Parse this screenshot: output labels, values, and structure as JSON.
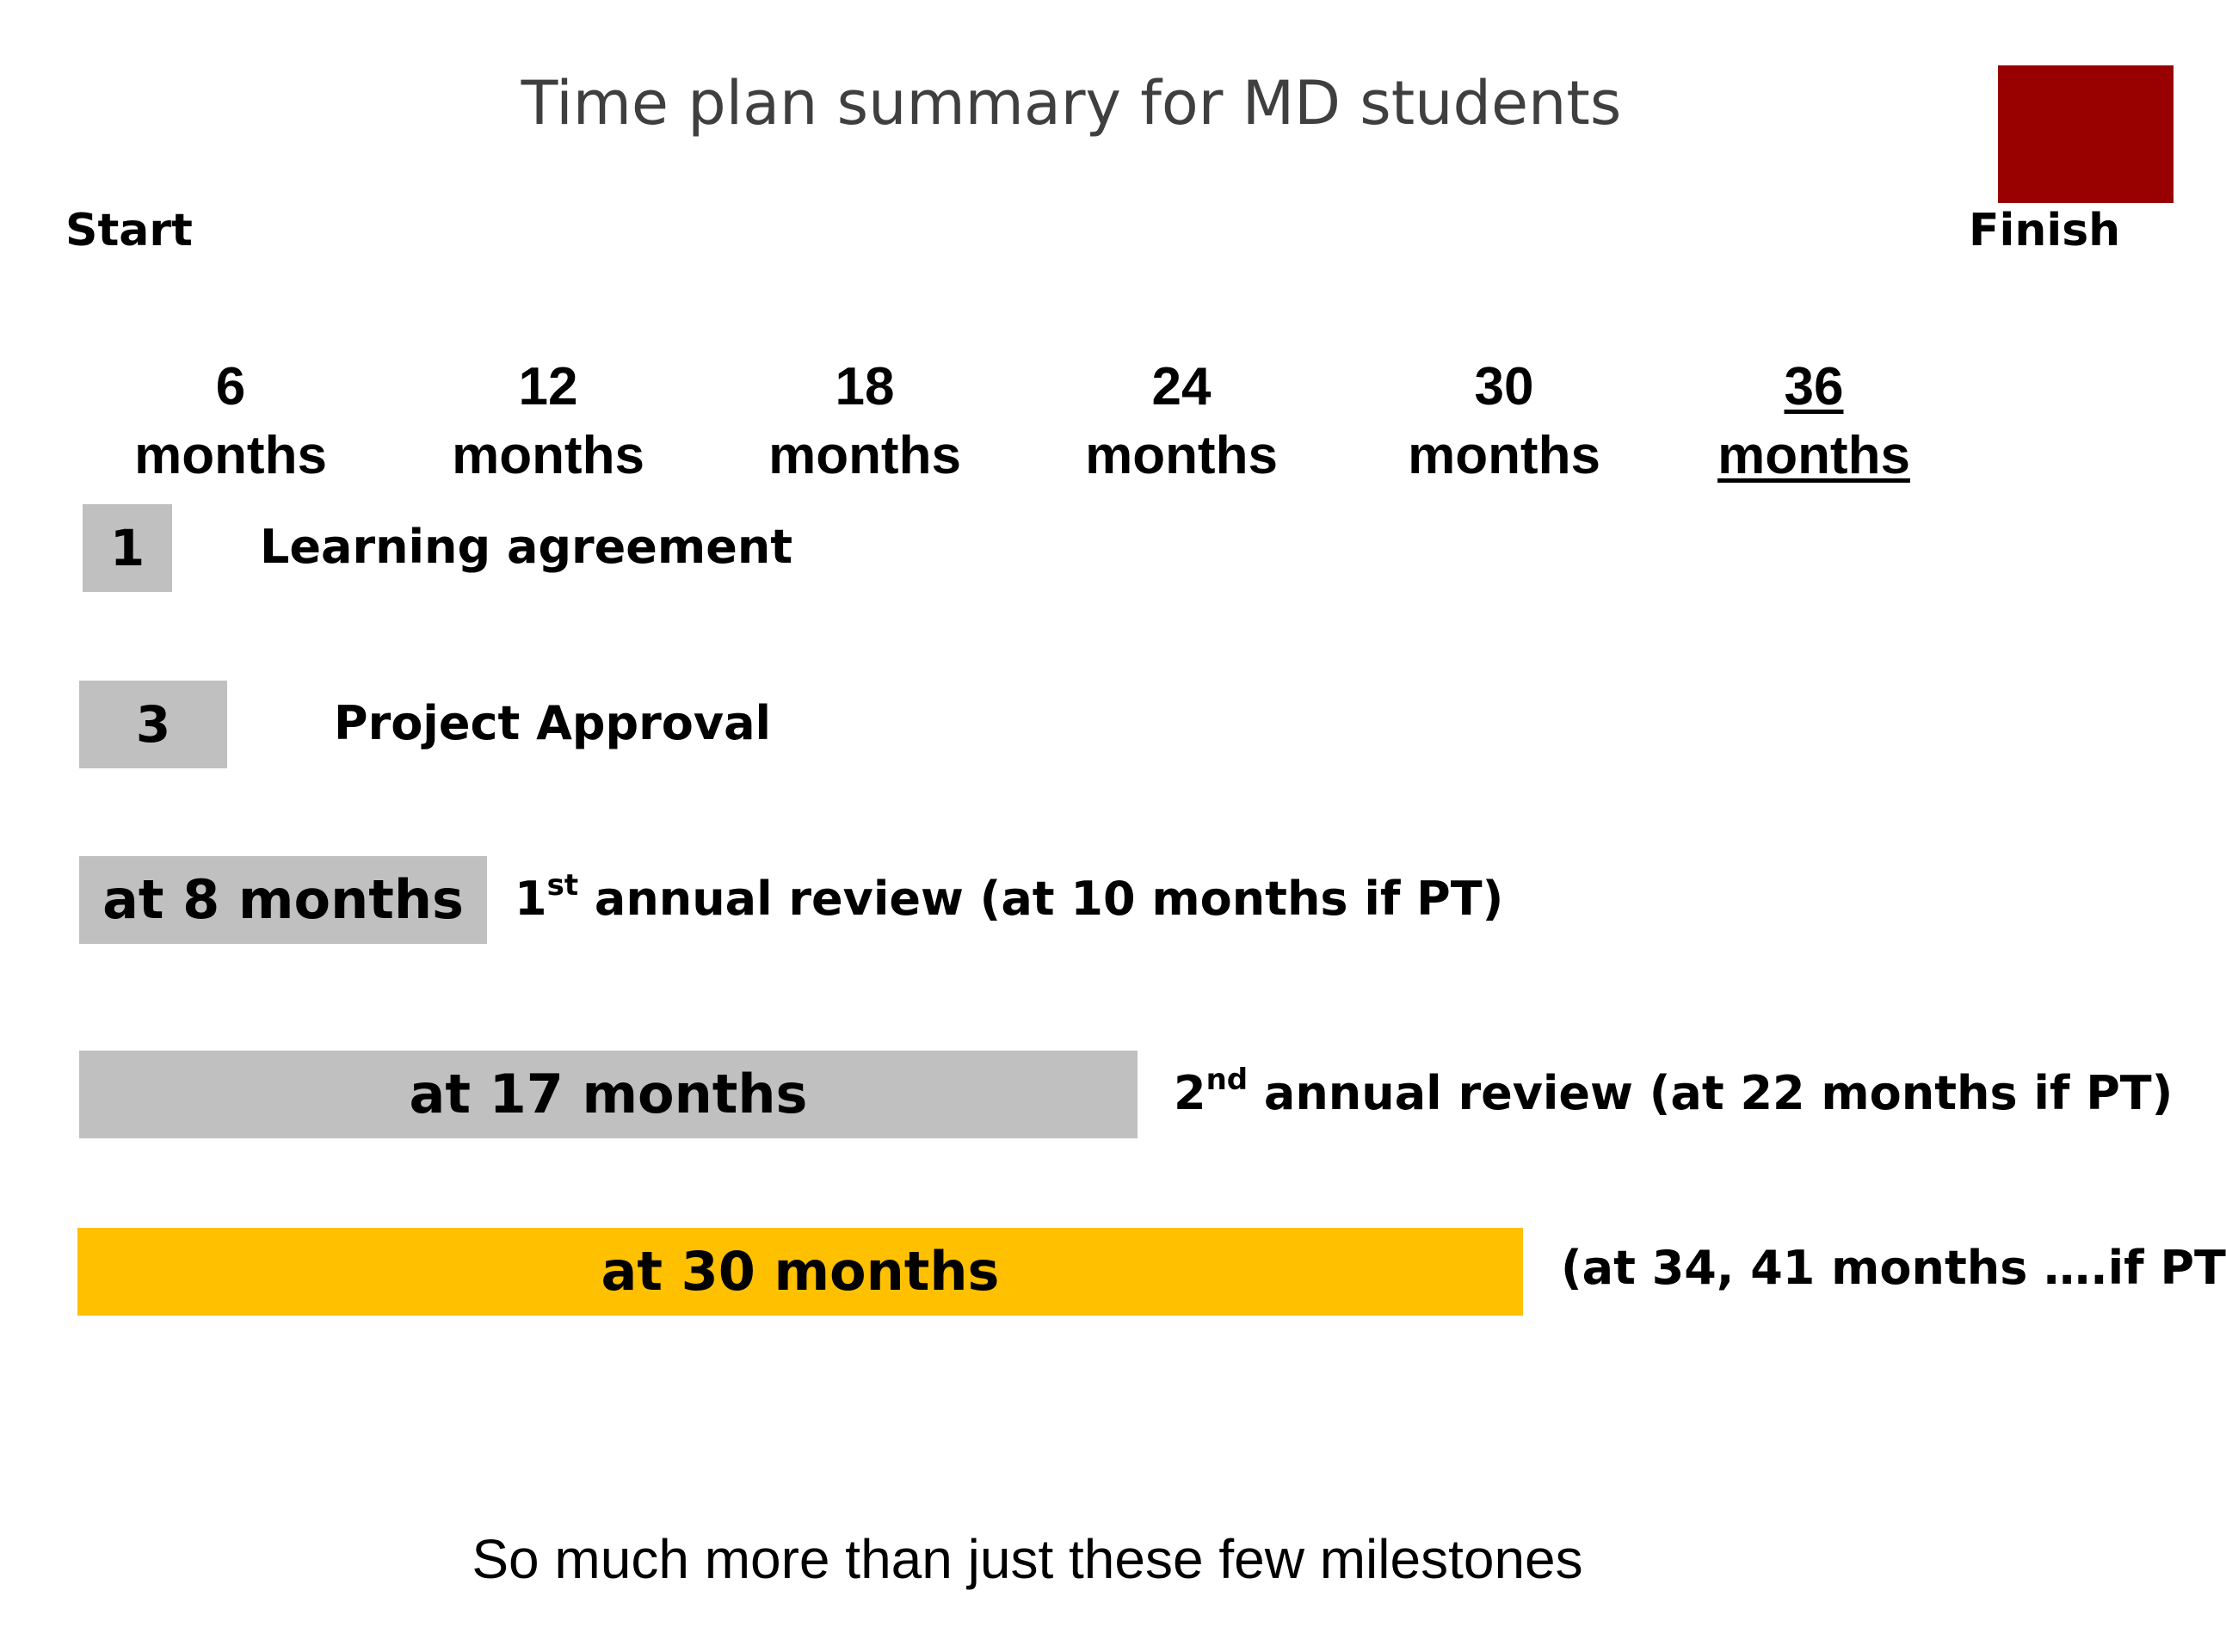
{
  "title": "Time plan summary for MD students",
  "start_label": "Start",
  "finish_label": "Finish",
  "colors": {
    "corner_block": "#990000",
    "gray_bar": "#c0c0c0",
    "highlight_bar": "#ffc000",
    "title_text": "#3f3f3f"
  },
  "timeline": {
    "total_months": 36,
    "ticks": [
      {
        "number": "6",
        "unit": "months"
      },
      {
        "number": "12",
        "unit": "months"
      },
      {
        "number": "18",
        "unit": "months"
      },
      {
        "number": "24",
        "unit": "months"
      },
      {
        "number": "30",
        "unit": "months"
      },
      {
        "number": "36",
        "unit": "months"
      }
    ]
  },
  "milestones": [
    {
      "bar_text": "1",
      "label": "Learning agreement"
    },
    {
      "bar_text": "3",
      "label": "Project Approval"
    },
    {
      "bar_text": "at 8 months",
      "label_prefix": "1",
      "label_sup": "st",
      "label_rest": " annual review (at 10 months if PT)"
    },
    {
      "bar_text": "at 17 months",
      "label_prefix": "2",
      "label_sup": "nd",
      "label_rest": " annual review (at 22 months if PT)"
    },
    {
      "bar_text": "at  30 months",
      "label": "(at 34, 41 months ….if PT"
    }
  ],
  "footer": "So much more than just these few milestones"
}
